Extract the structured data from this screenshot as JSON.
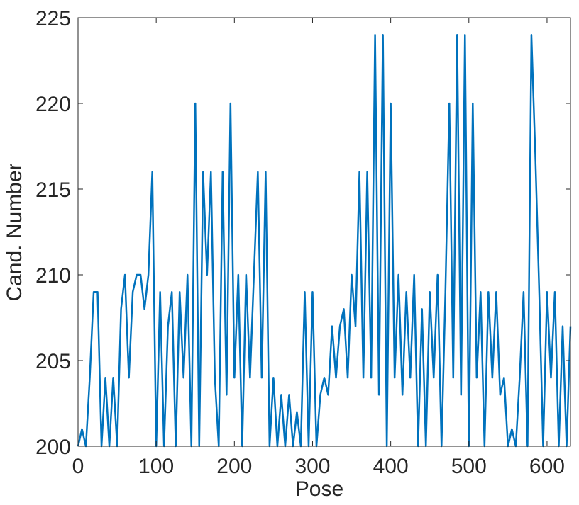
{
  "chart_data": {
    "type": "line",
    "x_label": "Pose",
    "y_label": "Cand. Number",
    "x": [
      0,
      5,
      10,
      15,
      20,
      25,
      30,
      35,
      40,
      45,
      50,
      55,
      60,
      65,
      70,
      75,
      80,
      85,
      90,
      95,
      100,
      105,
      110,
      115,
      120,
      125,
      130,
      135,
      140,
      145,
      150,
      155,
      160,
      165,
      170,
      175,
      180,
      185,
      190,
      195,
      200,
      205,
      210,
      215,
      220,
      225,
      230,
      235,
      240,
      245,
      250,
      255,
      260,
      265,
      270,
      275,
      280,
      285,
      290,
      295,
      300,
      305,
      310,
      315,
      320,
      325,
      330,
      335,
      340,
      345,
      350,
      355,
      360,
      365,
      370,
      375,
      380,
      385,
      390,
      395,
      400,
      405,
      410,
      415,
      420,
      425,
      430,
      435,
      440,
      445,
      450,
      455,
      460,
      465,
      470,
      475,
      480,
      485,
      490,
      495,
      500,
      505,
      510,
      515,
      520,
      525,
      530,
      535,
      540,
      545,
      550,
      555,
      560,
      565,
      570,
      575,
      580,
      585,
      590,
      595,
      600,
      605,
      610,
      615,
      620,
      625,
      630
    ],
    "series": [
      {
        "color": "#0072bd",
        "values": [
          200,
          201,
          200,
          204,
          209,
          209,
          200,
          204,
          200,
          204,
          200,
          208,
          210,
          204,
          209,
          210,
          210,
          208,
          210,
          216,
          200,
          209,
          200,
          207,
          209,
          200,
          209,
          204,
          210,
          200,
          220,
          200,
          216,
          210,
          216,
          204,
          200,
          216,
          203,
          220,
          204,
          210,
          200,
          210,
          204,
          210,
          216,
          204,
          216,
          200,
          204,
          200,
          203,
          200,
          203,
          200,
          202,
          200,
          209,
          200,
          209,
          200,
          203,
          204,
          203,
          207,
          204,
          207,
          208,
          204,
          210,
          207,
          216,
          204,
          216,
          204,
          224,
          203,
          224,
          200,
          220,
          204,
          210,
          203,
          209,
          204,
          210,
          200,
          208,
          200,
          209,
          204,
          210,
          200,
          209,
          220,
          204,
          224,
          203,
          224,
          200,
          220,
          204,
          209,
          200,
          209,
          204,
          209,
          203,
          204,
          200,
          201,
          200,
          204,
          209,
          200,
          224,
          217,
          209,
          200,
          209,
          204,
          209,
          200,
          207,
          200,
          207
        ]
      }
    ],
    "xlim": [
      0,
      630
    ],
    "ylim": [
      200,
      225
    ],
    "xticks": [
      0,
      100,
      200,
      300,
      400,
      500,
      600
    ],
    "yticks": [
      200,
      205,
      210,
      215,
      220,
      225
    ]
  }
}
